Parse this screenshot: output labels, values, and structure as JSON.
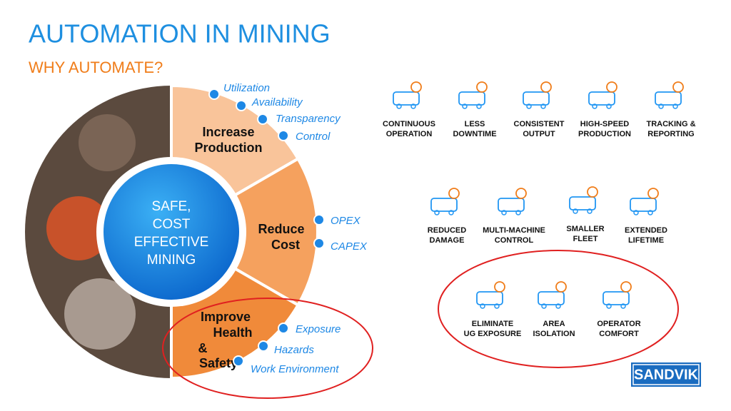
{
  "header": {
    "title": "AUTOMATION IN MINING",
    "subtitle": "WHY AUTOMATE?"
  },
  "wheel": {
    "center": [
      "SAFE,",
      "COST",
      "EFFECTIVE",
      "MINING"
    ],
    "segments": [
      {
        "label": [
          "Increase",
          "Production"
        ],
        "items": [
          "Utilization",
          "Availability",
          "Transparency",
          "Control"
        ]
      },
      {
        "label": [
          "Reduce",
          "Cost"
        ],
        "items": [
          "OPEX",
          "CAPEX"
        ]
      },
      {
        "label": [
          "Improve",
          "Health",
          "&",
          "Safety"
        ],
        "items": [
          "Exposure",
          "Hazards",
          "Work Environment"
        ]
      }
    ]
  },
  "benefits": [
    [
      [
        "CONTINUOUS",
        "OPERATION"
      ],
      [
        "LESS",
        "DOWNTIME"
      ],
      [
        "CONSISTENT",
        "OUTPUT"
      ],
      [
        "HIGH-SPEED",
        "PRODUCTION"
      ],
      [
        "TRACKING &",
        "REPORTING"
      ]
    ],
    [
      [
        "REDUCED",
        "DAMAGE"
      ],
      [
        "MULTI-MACHINE",
        "CONTROL"
      ],
      [
        "SMALLER",
        "FLEET"
      ],
      [
        "EXTENDED",
        "LIFETIME"
      ]
    ],
    [
      [
        "ELIMINATE",
        "UG EXPOSURE"
      ],
      [
        "AREA",
        "ISOLATION"
      ],
      [
        "OPERATOR",
        "COMFORT"
      ]
    ]
  ],
  "logo": "SANDVIK"
}
